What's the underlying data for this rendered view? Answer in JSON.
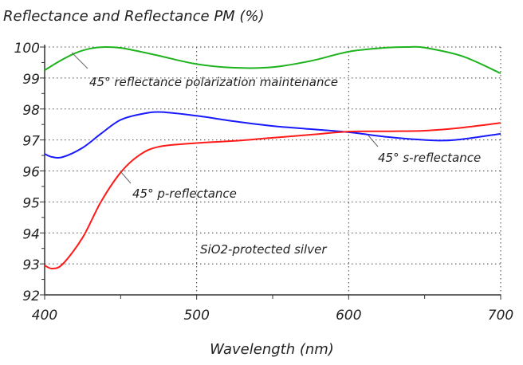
{
  "chart_data": {
    "type": "line",
    "title": "Reflectance and Reflectance PM (%)",
    "xlabel": "Wavelength (nm)",
    "ylabel": "",
    "xlim": [
      400,
      700
    ],
    "ylim": [
      92,
      100
    ],
    "xticks": [
      "400",
      "500",
      "600",
      "700"
    ],
    "yticks": [
      "92",
      "93",
      "94",
      "95",
      "96",
      "97",
      "98",
      "99",
      "100"
    ],
    "grid": true,
    "annotation": "SiO2-protected silver",
    "series": [
      {
        "name": "45° reflectance polarization maintenance",
        "color": "#1db31d",
        "x": [
          400,
          410,
          420,
          430,
          440,
          450,
          460,
          475,
          500,
          525,
          550,
          575,
          600,
          625,
          640,
          650,
          675,
          700
        ],
        "y": [
          99.25,
          99.55,
          99.8,
          99.95,
          100.0,
          99.97,
          99.88,
          99.72,
          99.45,
          99.33,
          99.35,
          99.55,
          99.85,
          99.98,
          100.0,
          99.98,
          99.7,
          99.15
        ]
      },
      {
        "name": "45° s-reflectance",
        "color": "#1a1aff",
        "x": [
          400,
          405,
          412,
          425,
          437,
          450,
          465,
          477,
          500,
          525,
          550,
          575,
          600,
          625,
          650,
          670,
          700
        ],
        "y": [
          96.55,
          96.45,
          96.45,
          96.75,
          97.2,
          97.65,
          97.85,
          97.9,
          97.78,
          97.6,
          97.45,
          97.35,
          97.25,
          97.1,
          97.0,
          97.0,
          97.2
        ]
      },
      {
        "name": "45° p-reflectance",
        "color": "#ff1a1a",
        "x": [
          400,
          405,
          412,
          425,
          437,
          450,
          462,
          475,
          500,
          525,
          550,
          575,
          600,
          625,
          650,
          675,
          700
        ],
        "y": [
          92.95,
          92.85,
          93.0,
          93.85,
          95.0,
          95.95,
          96.5,
          96.78,
          96.9,
          96.97,
          97.07,
          97.17,
          97.27,
          97.28,
          97.3,
          97.4,
          97.55
        ]
      }
    ]
  }
}
